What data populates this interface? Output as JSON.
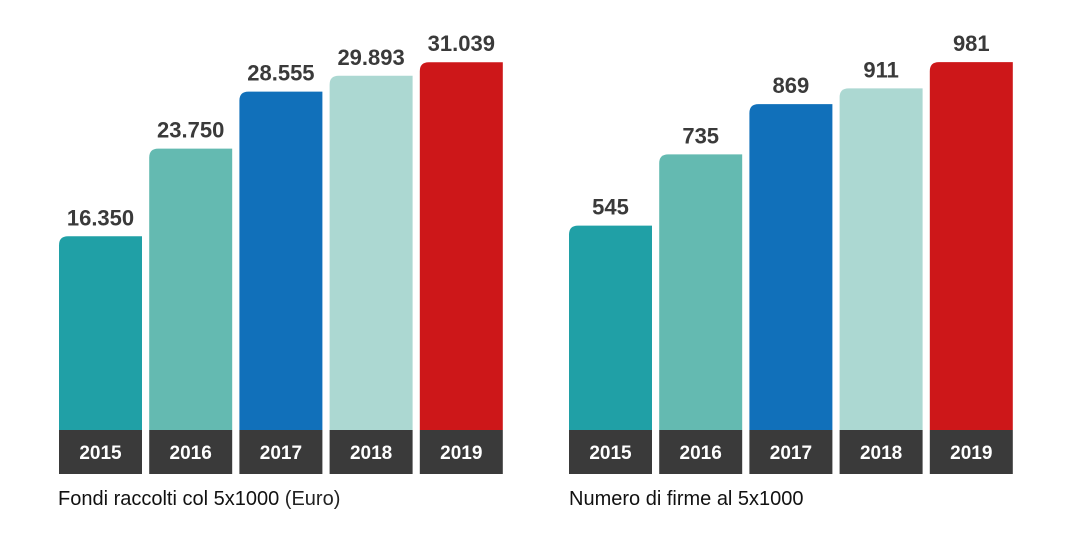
{
  "chart_data": [
    {
      "type": "bar",
      "title": "Fondi raccolti col 5x1000",
      "unit": "(Euro)",
      "categories": [
        "2015",
        "2016",
        "2017",
        "2018",
        "2019"
      ],
      "values": [
        16350,
        23750,
        28555,
        29893,
        31039
      ],
      "value_labels": [
        "16.350",
        "23.750",
        "28.555",
        "29.893",
        "31.039"
      ],
      "colors": [
        "#20a0a6",
        "#64bab1",
        "#1170ba",
        "#acd8d2",
        "#cd1719"
      ],
      "category_band_color": "#3a3a3a",
      "grid": false
    },
    {
      "type": "bar",
      "title": "Numero di firme al 5x1000",
      "unit": "",
      "categories": [
        "2015",
        "2016",
        "2017",
        "2018",
        "2019"
      ],
      "values": [
        545,
        735,
        869,
        911,
        981
      ],
      "value_labels": [
        "545",
        "735",
        "869",
        "911",
        "981"
      ],
      "colors": [
        "#20a0a6",
        "#64bab1",
        "#1170ba",
        "#acd8d2",
        "#cd1719"
      ],
      "category_band_color": "#3a3a3a",
      "grid": false
    }
  ]
}
